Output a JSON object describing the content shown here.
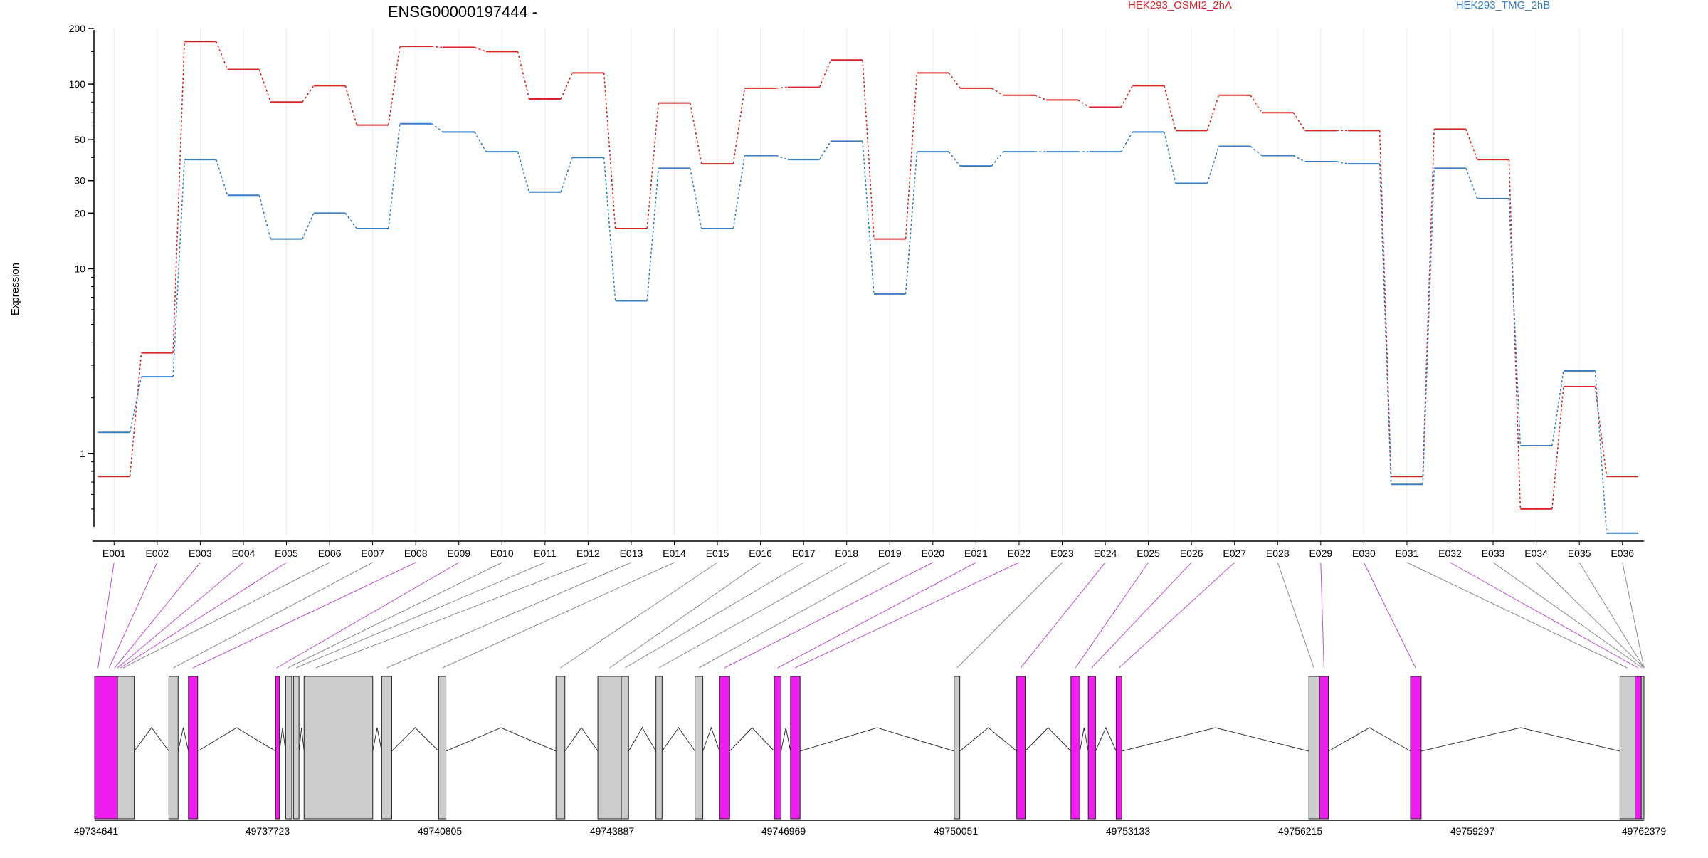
{
  "chart_data": {
    "type": "line",
    "title": "ENSG00000197444 -",
    "ylabel": "Expression",
    "xlabel": "",
    "y_scale": "log",
    "ylim": [
      0.4,
      200
    ],
    "y_ticks": [
      {
        "v": 1,
        "label": "1"
      },
      {
        "v": 10,
        "label": "10"
      },
      {
        "v": 20,
        "label": "20"
      },
      {
        "v": 30,
        "label": "30"
      },
      {
        "v": 50,
        "label": "50"
      },
      {
        "v": 100,
        "label": "100"
      },
      {
        "v": 200,
        "label": "200"
      }
    ],
    "grid": "vertical",
    "legend_position": "top-right",
    "categories": [
      "E001",
      "E002",
      "E003",
      "E004",
      "E005",
      "E006",
      "E007",
      "E008",
      "E009",
      "E010",
      "E011",
      "E012",
      "E013",
      "E014",
      "E015",
      "E016",
      "E017",
      "E018",
      "E019",
      "E020",
      "E021",
      "E022",
      "E023",
      "E024",
      "E025",
      "E026",
      "E027",
      "E028",
      "E029",
      "E030",
      "E031",
      "E032",
      "E033",
      "E034",
      "E035",
      "E036"
    ],
    "series": [
      {
        "name": "HEK293_OSMI2_2hA",
        "color": "#d62728",
        "values": [
          0.75,
          3.5,
          170,
          120,
          80,
          98,
          60,
          160,
          158,
          150,
          83,
          115,
          16.5,
          79,
          37,
          95,
          96,
          135,
          14.5,
          115,
          95,
          87,
          82,
          75,
          98,
          56,
          87,
          70,
          56,
          56,
          0.75,
          57,
          39,
          0.5,
          2.3,
          0.75
        ]
      },
      {
        "name": "HEK293_TMG_2hB",
        "color": "#3a7dc1",
        "values": [
          1.3,
          2.6,
          39,
          25,
          14.5,
          20,
          16.5,
          61,
          55,
          43,
          26,
          40,
          6.7,
          35,
          16.5,
          41,
          39,
          49,
          7.3,
          43,
          36,
          43,
          43,
          43,
          55,
          29,
          46,
          41,
          38,
          37,
          0.68,
          35,
          24,
          1.1,
          2.8,
          0.37
        ]
      }
    ],
    "coordinate_labels": [
      "49734641",
      "49737723",
      "49740805",
      "49743887",
      "49746969",
      "49750051",
      "49753133",
      "49756215",
      "49759297",
      "49762379"
    ],
    "gene_model": {
      "start": 49734641,
      "end": 49762379,
      "exon_fill": "#cccccc",
      "highlight_fill": "#ee1eee",
      "exons": [
        {
          "start": 49734641,
          "end": 49735050,
          "highlight": true
        },
        {
          "start": 49735050,
          "end": 49735350,
          "highlight": false
        },
        {
          "start": 49735970,
          "end": 49736135,
          "highlight": false
        },
        {
          "start": 49736320,
          "end": 49736485,
          "highlight": true
        },
        {
          "start": 49737880,
          "end": 49737950,
          "highlight": true
        },
        {
          "start": 49738060,
          "end": 49738170,
          "highlight": false
        },
        {
          "start": 49738200,
          "end": 49738300,
          "highlight": false
        },
        {
          "start": 49738390,
          "end": 49739620,
          "highlight": false
        },
        {
          "start": 49739780,
          "end": 49739960,
          "highlight": false
        },
        {
          "start": 49740800,
          "end": 49740930,
          "highlight": false
        },
        {
          "start": 49742900,
          "end": 49743060,
          "highlight": false
        },
        {
          "start": 49743650,
          "end": 49744070,
          "highlight": false
        },
        {
          "start": 49744070,
          "end": 49744200,
          "highlight": false
        },
        {
          "start": 49744690,
          "end": 49744800,
          "highlight": false
        },
        {
          "start": 49745390,
          "end": 49745530,
          "highlight": false
        },
        {
          "start": 49745830,
          "end": 49746010,
          "highlight": true
        },
        {
          "start": 49746810,
          "end": 49746930,
          "highlight": true
        },
        {
          "start": 49747100,
          "end": 49747270,
          "highlight": true
        },
        {
          "start": 49750030,
          "end": 49750130,
          "highlight": false
        },
        {
          "start": 49751150,
          "end": 49751300,
          "highlight": true
        },
        {
          "start": 49752120,
          "end": 49752280,
          "highlight": true
        },
        {
          "start": 49752430,
          "end": 49752560,
          "highlight": true
        },
        {
          "start": 49752930,
          "end": 49753030,
          "highlight": true
        },
        {
          "start": 49756380,
          "end": 49756570,
          "highlight": false
        },
        {
          "start": 49756570,
          "end": 49756730,
          "highlight": true
        },
        {
          "start": 49758200,
          "end": 49758390,
          "highlight": true
        },
        {
          "start": 49761950,
          "end": 49762220,
          "highlight": false
        },
        {
          "start": 49762220,
          "end": 49762330,
          "highlight": true
        },
        {
          "start": 49762330,
          "end": 49762379,
          "highlight": false
        }
      ],
      "exon_mapping": [
        {
          "bin": "E001",
          "genomic": 49734700,
          "highlight": true
        },
        {
          "bin": "E002",
          "genomic": 49734900,
          "highlight": true
        },
        {
          "bin": "E003",
          "genomic": 49735000,
          "highlight": true
        },
        {
          "bin": "E004",
          "genomic": 49735050,
          "highlight": true
        },
        {
          "bin": "E005",
          "genomic": 49735100,
          "highlight": true
        },
        {
          "bin": "E006",
          "genomic": 49735150,
          "highlight": false
        },
        {
          "bin": "E007",
          "genomic": 49736050,
          "highlight": false
        },
        {
          "bin": "E008",
          "genomic": 49736400,
          "highlight": true
        },
        {
          "bin": "E009",
          "genomic": 49737900,
          "highlight": true
        },
        {
          "bin": "E010",
          "genomic": 49738100,
          "highlight": false
        },
        {
          "bin": "E011",
          "genomic": 49738250,
          "highlight": false
        },
        {
          "bin": "E012",
          "genomic": 49738600,
          "highlight": false
        },
        {
          "bin": "E013",
          "genomic": 49739870,
          "highlight": false
        },
        {
          "bin": "E014",
          "genomic": 49740870,
          "highlight": false
        },
        {
          "bin": "E015",
          "genomic": 49742980,
          "highlight": false
        },
        {
          "bin": "E016",
          "genomic": 49743860,
          "highlight": false
        },
        {
          "bin": "E017",
          "genomic": 49744140,
          "highlight": false
        },
        {
          "bin": "E018",
          "genomic": 49744740,
          "highlight": false
        },
        {
          "bin": "E019",
          "genomic": 49745460,
          "highlight": false
        },
        {
          "bin": "E020",
          "genomic": 49745920,
          "highlight": true
        },
        {
          "bin": "E021",
          "genomic": 49746870,
          "highlight": true
        },
        {
          "bin": "E022",
          "genomic": 49747180,
          "highlight": true
        },
        {
          "bin": "E023",
          "genomic": 49750080,
          "highlight": false
        },
        {
          "bin": "E024",
          "genomic": 49751220,
          "highlight": true
        },
        {
          "bin": "E025",
          "genomic": 49752200,
          "highlight": true
        },
        {
          "bin": "E026",
          "genomic": 49752490,
          "highlight": true
        },
        {
          "bin": "E027",
          "genomic": 49752980,
          "highlight": true
        },
        {
          "bin": "E028",
          "genomic": 49756470,
          "highlight": false
        },
        {
          "bin": "E029",
          "genomic": 49756650,
          "highlight": true
        },
        {
          "bin": "E030",
          "genomic": 49758290,
          "highlight": true
        },
        {
          "bin": "E031",
          "genomic": 49762080,
          "highlight": false
        },
        {
          "bin": "E032",
          "genomic": 49762270,
          "highlight": true
        },
        {
          "bin": "E033",
          "genomic": 49762350,
          "highlight": false
        },
        {
          "bin": "E034",
          "genomic": 49762379,
          "highlight": false
        },
        {
          "bin": "E035",
          "genomic": 49762379,
          "highlight": false
        },
        {
          "bin": "E036",
          "genomic": 49762379,
          "highlight": false
        }
      ]
    }
  }
}
